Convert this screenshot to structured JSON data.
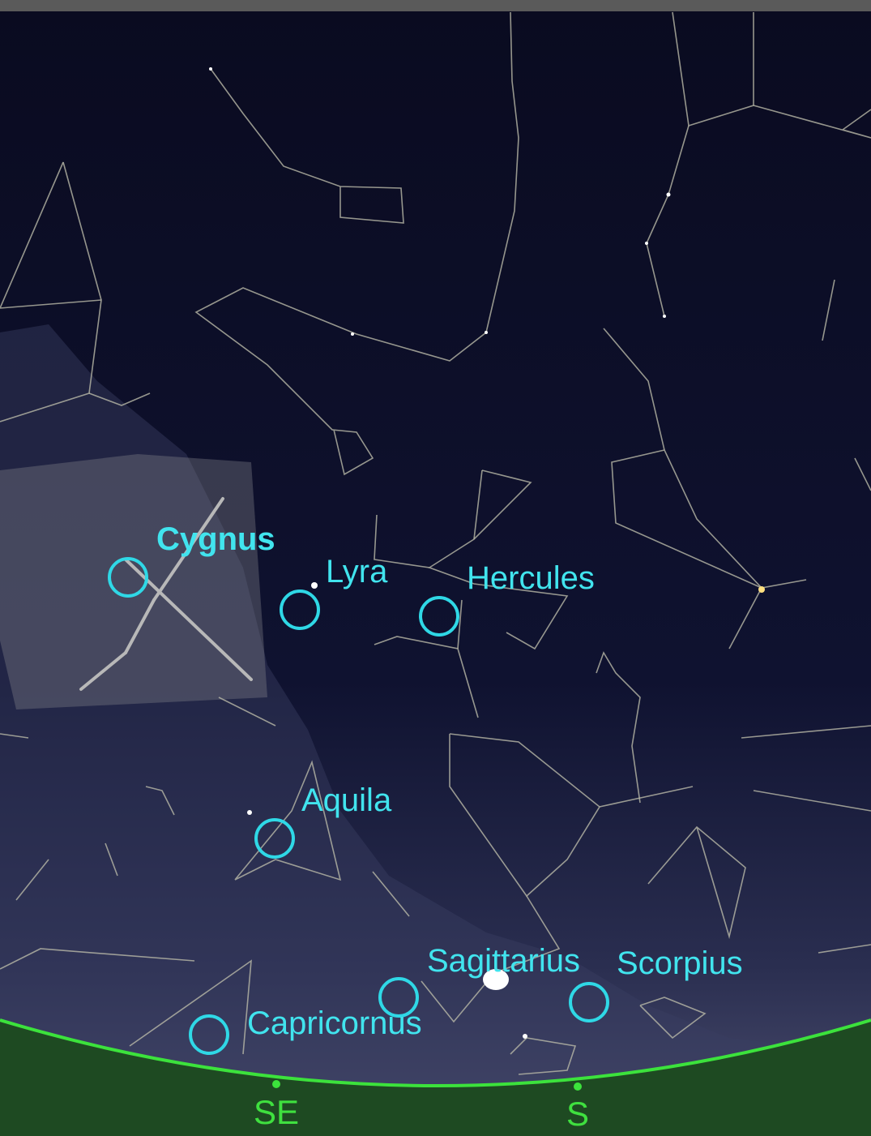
{
  "constellations": [
    {
      "label": "Cygnus"
    },
    {
      "label": "Lyra"
    },
    {
      "label": "Hercules"
    },
    {
      "label": "Aquila"
    },
    {
      "label": "Sagittarius"
    },
    {
      "label": "Scorpius"
    },
    {
      "label": "Capricornus"
    }
  ],
  "compass": [
    "SE",
    "S"
  ]
}
